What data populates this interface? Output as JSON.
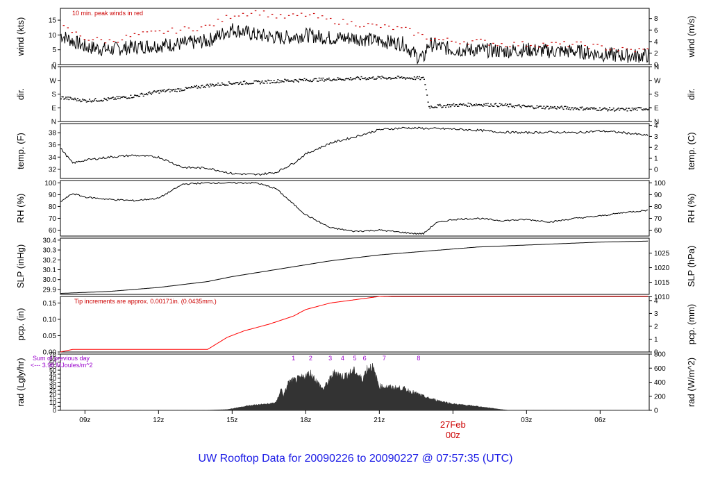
{
  "footer": {
    "title": "UW Rooftop Data for 20090226  to  20090227 @ 07:57:35  (UTC)"
  },
  "x_axis": {
    "ticks": [
      "09z",
      "12z",
      "15z",
      "18z",
      "21z",
      "00z",
      "03z",
      "06z"
    ],
    "tick_hours": [
      9,
      12,
      15,
      18,
      21,
      24,
      27,
      30
    ],
    "date_label": "27Feb",
    "start_hour": 8,
    "end_hour": 32,
    "date_color": "#cc0000"
  },
  "chart_data": [
    {
      "type": "line",
      "ylabel": "wind (kts)",
      "ylabel_right": "wind (m/s)",
      "ylim": [
        0,
        19
      ],
      "yticks": [
        0,
        5,
        10,
        15
      ],
      "yticks_right": [
        0,
        2,
        4,
        6,
        8
      ],
      "right_scale": 0.5144,
      "annotation": "10 min. peak winds in red",
      "annotation_color": "#cc0000",
      "series": [
        {
          "role": "mean",
          "color": "#000000",
          "x": [
            8,
            9,
            10,
            11,
            12,
            13,
            14,
            15,
            16,
            17,
            18,
            19,
            20,
            21,
            22,
            22.5,
            22.8,
            23,
            24,
            25,
            26,
            27,
            28,
            29,
            30,
            31,
            32
          ],
          "y": [
            10,
            6,
            5,
            6,
            6.5,
            7,
            8,
            12,
            10,
            9,
            10,
            9,
            9,
            8,
            7,
            3,
            2,
            7,
            5,
            5,
            4.5,
            5,
            4.5,
            4.5,
            3.5,
            3,
            3
          ]
        },
        {
          "role": "peak",
          "color": "#cc0000",
          "x": [
            8,
            9,
            10,
            11,
            12,
            13,
            14,
            15,
            16,
            17,
            18,
            19,
            20,
            21,
            22,
            23,
            24,
            25,
            26,
            27,
            28,
            29,
            30,
            31,
            32
          ],
          "y": [
            13,
            9,
            8,
            10,
            11,
            12,
            13,
            17,
            18,
            16,
            17,
            15,
            14,
            13,
            12,
            9,
            8,
            8,
            7,
            7,
            7,
            7,
            6,
            5,
            5
          ]
        }
      ]
    },
    {
      "type": "scatter",
      "ylabel": "dir.",
      "ylabel_right": "dir.",
      "yticks": [
        "N",
        "E",
        "S",
        "W",
        "N"
      ],
      "yticks_right": [
        "N",
        "E",
        "S",
        "W",
        "N"
      ],
      "ylim": [
        0,
        360
      ],
      "series": [
        {
          "color": "#000000",
          "x": [
            8,
            9,
            10,
            11,
            12,
            13,
            14,
            15,
            16,
            17,
            18,
            19,
            20,
            21,
            22,
            22.8,
            23,
            24,
            25,
            26,
            27,
            28,
            29,
            30,
            31,
            32
          ],
          "y": [
            160,
            140,
            150,
            170,
            200,
            215,
            240,
            255,
            260,
            270,
            275,
            280,
            285,
            290,
            290,
            285,
            100,
            110,
            115,
            110,
            100,
            95,
            90,
            85,
            80,
            90
          ]
        }
      ]
    },
    {
      "type": "line",
      "ylabel": "temp. (F)",
      "ylabel_right": "temp. (C)",
      "ylim": [
        30.5,
        39.5
      ],
      "yticks": [
        32,
        34,
        36,
        38
      ],
      "yticks_right": [
        0,
        1,
        2,
        3,
        4
      ],
      "series": [
        {
          "color": "#000000",
          "x": [
            8,
            8.5,
            9,
            10,
            11,
            12,
            13,
            14,
            15,
            16,
            16.8,
            17.5,
            18,
            19,
            20,
            21,
            22,
            23,
            24,
            25,
            26,
            27,
            28,
            29,
            30,
            31,
            32
          ],
          "y": [
            35.5,
            33,
            33.5,
            34,
            34.3,
            34,
            32.3,
            32.2,
            31.3,
            31.1,
            31.5,
            33,
            34.5,
            36.3,
            37.3,
            38.5,
            38.8,
            38.7,
            38.6,
            38.4,
            38.1,
            38,
            38.1,
            38,
            38.3,
            38,
            37.5
          ]
        }
      ]
    },
    {
      "type": "line",
      "ylabel": "RH (%)",
      "ylabel_right": "RH (%)",
      "ylim": [
        55,
        102
      ],
      "yticks": [
        60,
        70,
        80,
        90,
        100
      ],
      "yticks_right": [
        60,
        70,
        80,
        90,
        100
      ],
      "series": [
        {
          "color": "#000000",
          "x": [
            8,
            8.5,
            9,
            10,
            11,
            12,
            13,
            14,
            15,
            16,
            16.8,
            17.5,
            18,
            19,
            20,
            21,
            22,
            22.5,
            22.8,
            23.3,
            24,
            25,
            26,
            27,
            28,
            29,
            30,
            31,
            32
          ],
          "y": [
            84,
            91,
            88,
            86,
            85,
            87,
            99,
            100,
            100,
            100,
            95,
            82,
            73,
            62,
            59,
            60,
            58,
            57,
            57,
            66,
            69,
            70,
            68,
            69,
            67,
            70,
            72,
            75,
            77
          ]
        }
      ]
    },
    {
      "type": "line",
      "ylabel": "SLP (inHg)",
      "ylabel_right": "SLP (hPa)",
      "ylim": [
        29.85,
        30.42
      ],
      "yticks": [
        29.9,
        30.0,
        30.1,
        30.2,
        30.3,
        30.4
      ],
      "yticks_right": [
        1010,
        1015,
        1020,
        1025
      ],
      "series": [
        {
          "color": "#000000",
          "x": [
            8,
            9,
            10,
            11,
            12,
            13,
            14,
            15,
            16,
            17,
            18,
            19,
            20,
            21,
            22,
            23,
            24,
            25,
            26,
            27,
            28,
            29,
            30,
            31,
            32
          ],
          "y": [
            29.86,
            29.87,
            29.88,
            29.9,
            29.92,
            29.95,
            29.98,
            30.03,
            30.07,
            30.11,
            30.15,
            30.19,
            30.22,
            30.25,
            30.27,
            30.29,
            30.31,
            30.33,
            30.34,
            30.35,
            30.36,
            30.37,
            30.38,
            30.385,
            30.39
          ]
        }
      ]
    },
    {
      "type": "line",
      "ylabel": "pcp. (in)",
      "ylabel_right": "pcp. (mm)",
      "ylim": [
        0,
        0.17
      ],
      "yticks": [
        0.0,
        0.05,
        0.1,
        0.15
      ],
      "yticks_right": [
        0,
        1,
        2,
        3,
        4
      ],
      "annotation": "Tip increments are approx. 0.00171in. (0.0435mm.)",
      "annotation_color": "#cc0000",
      "series": [
        {
          "color": "#ff0000",
          "x": [
            8,
            8.5,
            9,
            13,
            14,
            14.8,
            15.5,
            16.5,
            17.5,
            18,
            19,
            20,
            21,
            21.5,
            22,
            24,
            27,
            30,
            32
          ],
          "y": [
            0,
            0.008,
            0.008,
            0.008,
            0.008,
            0.045,
            0.065,
            0.085,
            0.11,
            0.13,
            0.15,
            0.16,
            0.17,
            0.171,
            0.171,
            0.171,
            0.171,
            0.171,
            0.171
          ]
        }
      ]
    },
    {
      "type": "area",
      "ylabel": "rad (Lgly/hr)",
      "ylabel_right": "rad (W/m^2)",
      "ylim": [
        0,
        70
      ],
      "yticks": [
        0,
        5,
        10,
        15,
        20,
        25,
        30,
        35,
        40,
        45,
        50,
        55,
        60,
        65,
        70
      ],
      "yticks_right": [
        0,
        200,
        400,
        600,
        800
      ],
      "annotation_lines": [
        "Sum of previous day",
        "<--- 3.98 MJoules/m^2"
      ],
      "annotation_color": "#9900cc",
      "markers": [
        "1",
        "2",
        "3",
        "4",
        "5",
        "6",
        "7",
        "8"
      ],
      "marker_hours": [
        17.5,
        18.2,
        19.0,
        19.5,
        20.0,
        20.4,
        21.2,
        22.6
      ],
      "series": [
        {
          "color": "#333333",
          "x": [
            8,
            13,
            14,
            14.8,
            15.5,
            16,
            16.5,
            16.8,
            17.0,
            17.1,
            17.3,
            17.8,
            18.2,
            18.7,
            19.2,
            19.5,
            20,
            20.3,
            20.5,
            20.7,
            21,
            22,
            23,
            24,
            25,
            26,
            26.3,
            32
          ],
          "y": [
            0,
            0,
            0.2,
            1,
            5,
            7,
            8,
            10,
            27,
            18,
            35,
            40,
            46,
            26,
            48,
            42,
            49,
            38,
            52,
            55,
            30,
            27,
            15,
            8,
            5,
            1,
            0,
            0
          ]
        }
      ]
    }
  ]
}
